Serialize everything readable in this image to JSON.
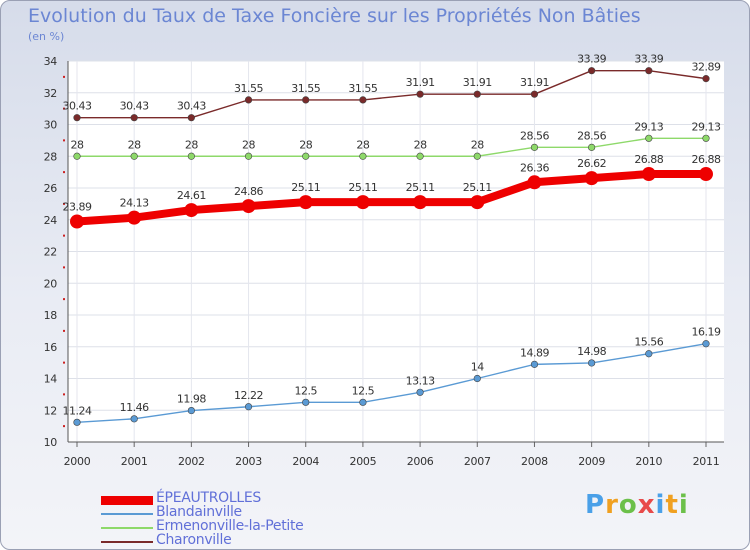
{
  "header": {
    "title": "Evolution du Taux de Taxe Foncière sur les Propriétés Non Bâties",
    "unit": "(en %)"
  },
  "logo": {
    "text": "Proxiti",
    "letters": [
      "P",
      "r",
      "o",
      "x",
      "i",
      "t",
      "i"
    ],
    "colors": [
      "#4aa0e8",
      "#f0a020",
      "#6cc04a",
      "#e84a4a",
      "#4aa0e8",
      "#f0a020",
      "#6cc04a"
    ]
  },
  "chart_data": {
    "type": "line",
    "categories": [
      "2000",
      "2001",
      "2002",
      "2003",
      "2004",
      "2005",
      "2006",
      "2007",
      "2008",
      "2009",
      "2010",
      "2011"
    ],
    "ylim": [
      10,
      34
    ],
    "yticks": [
      "10",
      "12",
      "14",
      "16",
      "18",
      "20",
      "22",
      "24",
      "26",
      "28",
      "30",
      "32",
      "34"
    ],
    "grid": true,
    "legend_position": "bottom-left",
    "series": [
      {
        "name": "ÉPEAUTROLLES",
        "color": "#ee0000",
        "values": [
          23.89,
          24.13,
          24.61,
          24.86,
          25.11,
          25.11,
          25.11,
          25.11,
          26.36,
          26.62,
          26.88,
          26.88
        ],
        "labels": [
          "23.89",
          "24.13",
          "24.61",
          "24.86",
          "25.11",
          "25.11",
          "25.11",
          "25.11",
          "26.36",
          "26.62",
          "26.88",
          "26.88"
        ]
      },
      {
        "name": "Blandainville",
        "color": "#5a9ad4",
        "values": [
          11.24,
          11.46,
          11.98,
          12.22,
          12.5,
          12.5,
          13.13,
          14,
          14.89,
          14.98,
          15.56,
          16.19
        ],
        "labels": [
          "11.24",
          "11.46",
          "11.98",
          "12.22",
          "12.5",
          "12.5",
          "13.13",
          "14",
          "14.89",
          "14.98",
          "15.56",
          "16.19"
        ]
      },
      {
        "name": "Ermenonville-la-Petite",
        "color": "#8ed96a",
        "values": [
          28,
          28,
          28,
          28,
          28,
          28,
          28,
          28,
          28.56,
          28.56,
          29.13,
          29.13
        ],
        "labels": [
          "28",
          "28",
          "28",
          "28",
          "28",
          "28",
          "28",
          "28",
          "28.56",
          "28.56",
          "29.13",
          "29.13"
        ]
      },
      {
        "name": "Charonville",
        "color": "#7a2a2a",
        "values": [
          30.43,
          30.43,
          30.43,
          31.55,
          31.55,
          31.55,
          31.91,
          31.91,
          31.91,
          33.39,
          33.39,
          32.89
        ],
        "labels": [
          "30.43",
          "30.43",
          "30.43",
          "31.55",
          "31.55",
          "31.55",
          "31.91",
          "31.91",
          "31.91",
          "33.39",
          "33.39",
          "32.89"
        ]
      }
    ]
  }
}
